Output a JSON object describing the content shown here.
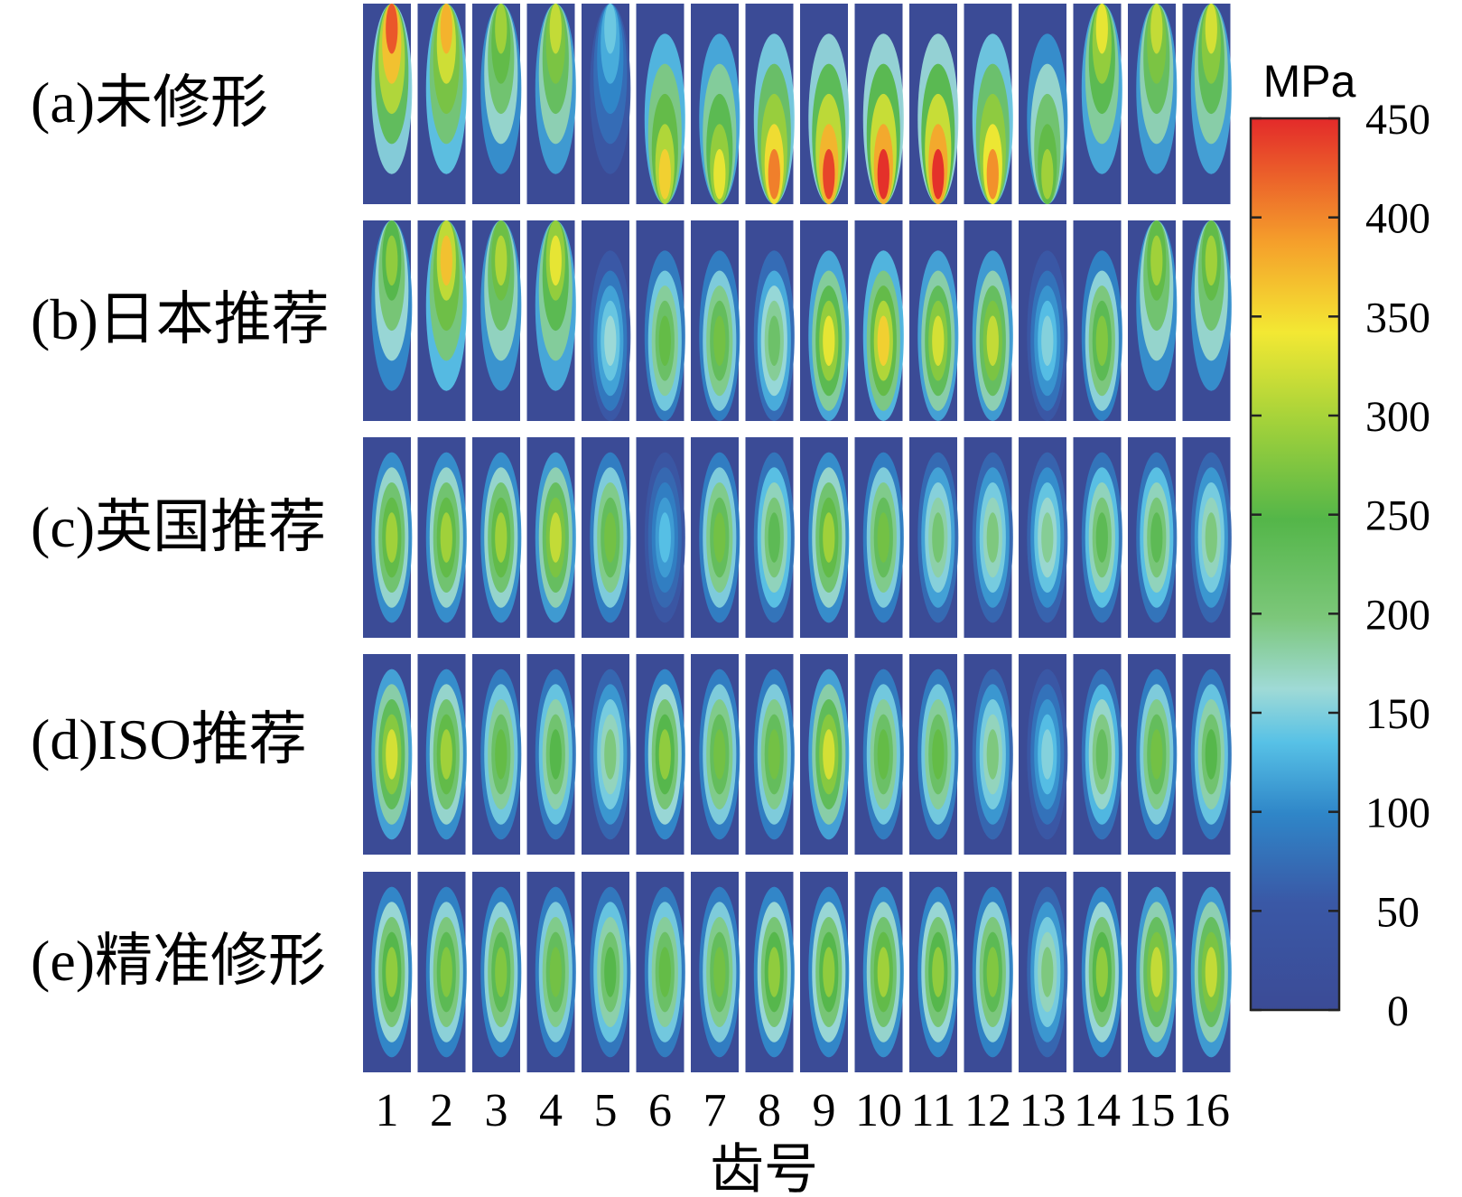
{
  "chart_data": {
    "type": "heatmap",
    "title": "",
    "xlabel": "齿号",
    "ylabel": "",
    "rows": [
      "(a)未修形",
      "(b)日本推荐",
      "(c)英国推荐",
      "(d)ISO推荐",
      "(e)精准修形"
    ],
    "categories": [
      "1",
      "2",
      "3",
      "4",
      "5",
      "6",
      "7",
      "8",
      "9",
      "10",
      "11",
      "12",
      "13",
      "14",
      "15",
      "16"
    ],
    "colorbar": {
      "unit": "MPa",
      "range": [
        0,
        450
      ],
      "ticks": [
        0,
        50,
        100,
        150,
        200,
        250,
        300,
        350,
        400,
        450
      ],
      "colors": [
        "#3b4b96",
        "#2f6bb5",
        "#4fb3e0",
        "#9ed8d6",
        "#5cb947",
        "#9fcf3a",
        "#f2e432",
        "#f4a02a",
        "#e8332a"
      ]
    },
    "peak_stress_mpa": [
      [
        430,
        380,
        300,
        320,
        140,
        360,
        340,
        410,
        440,
        450,
        450,
        400,
        300,
        340,
        320,
        330
      ],
      [
        290,
        370,
        310,
        340,
        160,
        260,
        270,
        220,
        340,
        360,
        330,
        320,
        150,
        280,
        300,
        300
      ],
      [
        300,
        300,
        300,
        320,
        270,
        130,
        270,
        240,
        300,
        270,
        210,
        200,
        190,
        240,
        240,
        200
      ],
      [
        330,
        300,
        260,
        250,
        200,
        290,
        270,
        270,
        330,
        260,
        260,
        200,
        150,
        230,
        270,
        250
      ],
      [
        290,
        280,
        280,
        270,
        250,
        260,
        270,
        290,
        290,
        300,
        290,
        280,
        200,
        290,
        320,
        320
      ]
    ]
  }
}
